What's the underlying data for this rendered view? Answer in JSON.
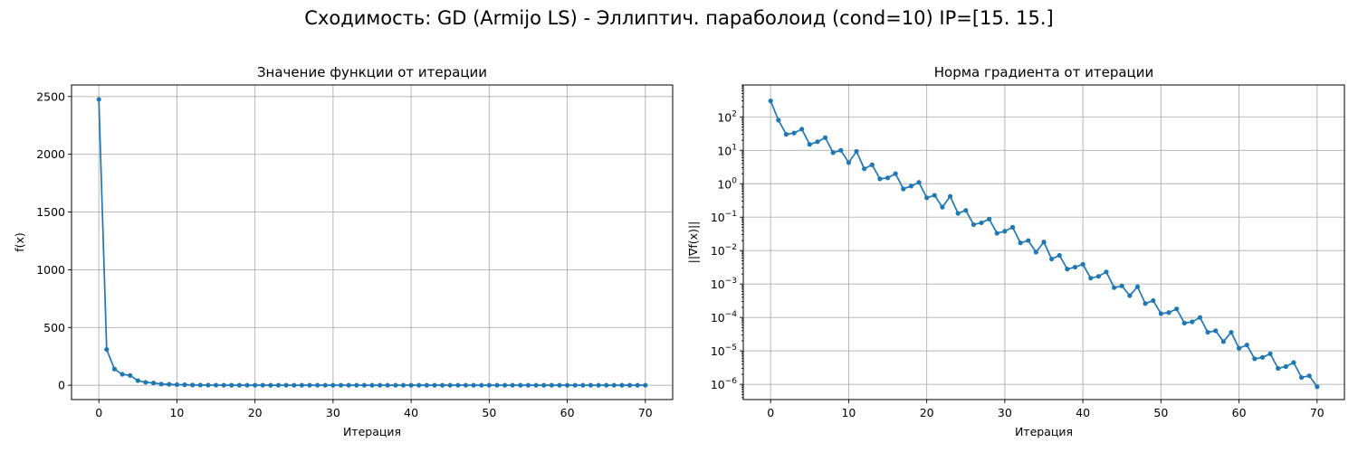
{
  "figure": {
    "suptitle": "Сходимость: GD (Armijo LS) - Эллиптич. параболоид (cond=10) IP=[15. 15.]"
  },
  "chart_data": [
    {
      "type": "line",
      "title": "Значение функции от итерации",
      "xlabel": "Итерация",
      "ylabel": "f(x)",
      "yscale": "linear",
      "xlim": [
        -3.5,
        73.5
      ],
      "ylim": [
        -124,
        2600
      ],
      "xticks": [
        0,
        10,
        20,
        30,
        40,
        50,
        60,
        70
      ],
      "yticks": [
        0,
        500,
        1000,
        1500,
        2000,
        2500
      ],
      "grid": true,
      "marker": "circle",
      "color": "#1f77b4",
      "x": [
        0,
        1,
        2,
        3,
        4,
        5,
        6,
        7,
        8,
        9,
        10,
        11,
        12,
        13,
        14,
        15,
        16,
        17,
        18,
        19,
        20,
        21,
        22,
        23,
        24,
        25,
        26,
        27,
        28,
        29,
        30,
        31,
        32,
        33,
        34,
        35,
        36,
        37,
        38,
        39,
        40,
        41,
        42,
        43,
        44,
        45,
        46,
        47,
        48,
        49,
        50,
        51,
        52,
        53,
        54,
        55,
        56,
        57,
        58,
        59,
        60,
        61,
        62,
        63,
        64,
        65,
        66,
        67,
        68,
        69,
        70
      ],
      "y": [
        2475,
        310,
        140,
        95,
        85,
        40,
        25,
        20,
        10,
        8,
        5,
        4,
        2,
        1.5,
        1,
        0.8,
        0.5,
        0.4,
        0.3,
        0.2,
        0.1,
        0.08,
        0.05,
        0.04,
        0.03,
        0.02,
        0.01,
        0.01,
        0.005,
        0,
        0,
        0,
        0,
        0,
        0,
        0,
        0,
        0,
        0,
        0,
        0,
        0,
        0,
        0,
        0,
        0,
        0,
        0,
        0,
        0,
        0,
        0,
        0,
        0,
        0,
        0,
        0,
        0,
        0,
        0,
        0,
        0,
        0,
        0,
        0,
        0,
        0,
        0,
        0,
        0,
        0
      ]
    },
    {
      "type": "line",
      "title": "Норма градиента от итерации",
      "xlabel": "Итерация",
      "ylabel": "||∇f(x)||",
      "yscale": "log",
      "xlim": [
        -3.5,
        73.5
      ],
      "ylim": [
        3.5e-07,
        900
      ],
      "xticks": [
        0,
        10,
        20,
        30,
        40,
        50,
        60,
        70
      ],
      "ytick_exponents": [
        -6,
        -5,
        -4,
        -3,
        -2,
        -1,
        0,
        1,
        2
      ],
      "grid": true,
      "marker": "circle",
      "color": "#1f77b4",
      "x": [
        0,
        1,
        2,
        3,
        4,
        5,
        6,
        7,
        8,
        9,
        10,
        11,
        12,
        13,
        14,
        15,
        16,
        17,
        18,
        19,
        20,
        21,
        22,
        23,
        24,
        25,
        26,
        27,
        28,
        29,
        30,
        31,
        32,
        33,
        34,
        35,
        36,
        37,
        38,
        39,
        40,
        41,
        42,
        43,
        44,
        45,
        46,
        47,
        48,
        49,
        50,
        51,
        52,
        53,
        54,
        55,
        56,
        57,
        58,
        59,
        60,
        61,
        62,
        63,
        64,
        65,
        66,
        67,
        68,
        69,
        70
      ],
      "y": [
        300,
        80,
        30,
        33,
        43,
        15,
        18,
        24,
        8.5,
        10,
        4.3,
        9.3,
        2.8,
        3.7,
        1.4,
        1.5,
        2.0,
        0.7,
        0.85,
        1.1,
        0.38,
        0.45,
        0.2,
        0.42,
        0.13,
        0.16,
        0.06,
        0.068,
        0.088,
        0.033,
        0.038,
        0.05,
        0.017,
        0.02,
        0.009,
        0.018,
        0.0056,
        0.0072,
        0.0028,
        0.0032,
        0.0039,
        0.0015,
        0.0017,
        0.0023,
        0.00078,
        0.00088,
        0.00045,
        0.00083,
        0.00026,
        0.00032,
        0.00013,
        0.00014,
        0.00018,
        6.8e-05,
        7.4e-05,
        0.0001,
        3.6e-05,
        4e-05,
        1.9e-05,
        3.6e-05,
        1.2e-05,
        1.5e-05,
        5.8e-06,
        6.4e-06,
        8.2e-06,
        3e-06,
        3.4e-06,
        4.5e-06,
        1.6e-06,
        1.8e-06,
        8.5e-07
      ]
    }
  ]
}
